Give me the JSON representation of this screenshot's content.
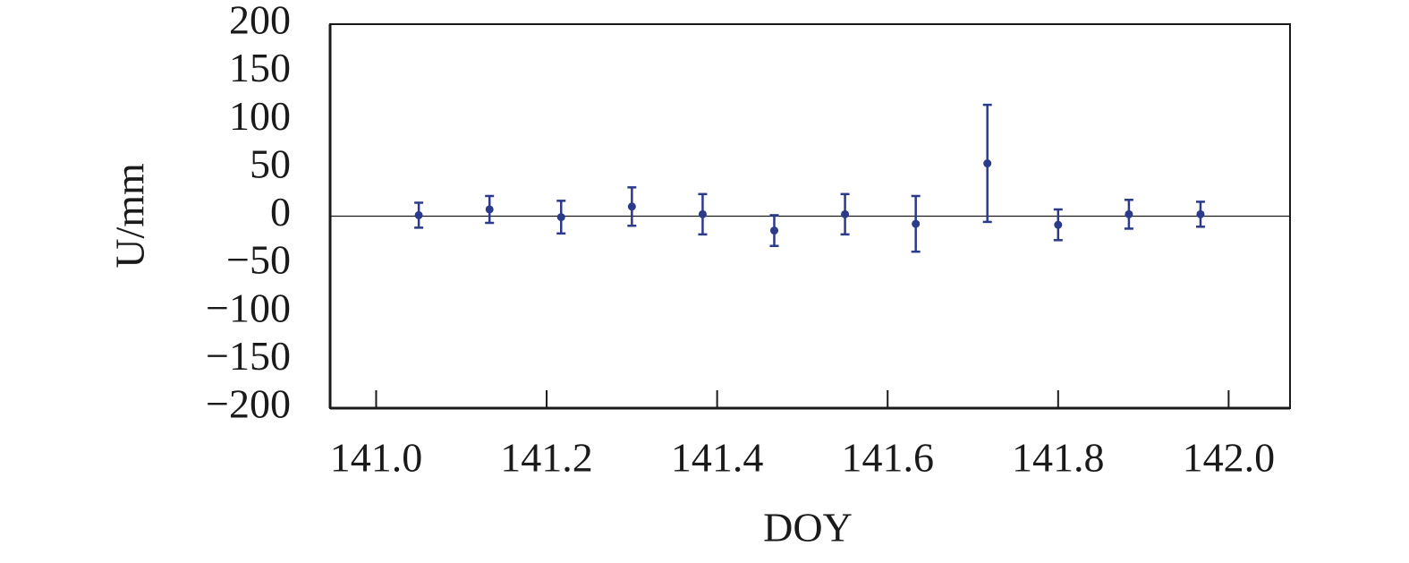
{
  "chart_data": {
    "type": "scatter",
    "x_label": "DOY",
    "y_label": "U/mm",
    "x": [
      141.05,
      141.133,
      141.217,
      141.3,
      141.383,
      141.467,
      141.55,
      141.633,
      141.717,
      141.8,
      141.883,
      141.967
    ],
    "values": [
      1,
      7,
      -1,
      10,
      2,
      -15,
      2,
      -8,
      55,
      -9,
      2,
      2
    ],
    "errors": [
      13,
      14,
      17,
      20,
      21,
      16,
      21,
      29,
      61,
      16,
      15,
      13
    ],
    "color": "#2b3a8a",
    "xlim": [
      140.946,
      142.072
    ],
    "xticks": [
      {
        "value": 141,
        "label": "141.0"
      },
      141.2,
      141.4,
      141.6,
      141.8,
      {
        "value": 142,
        "label": "142.0"
      }
    ],
    "ylim": [
      -200,
      200
    ],
    "yticks": [
      200,
      150,
      100,
      50,
      0,
      {
        "value": -50,
        "label": "−50"
      },
      {
        "value": -100,
        "label": "−100"
      },
      {
        "value": -150,
        "label": "−150"
      },
      {
        "value": -200,
        "label": "−200"
      }
    ],
    "zero_line": true,
    "grid": false
  }
}
